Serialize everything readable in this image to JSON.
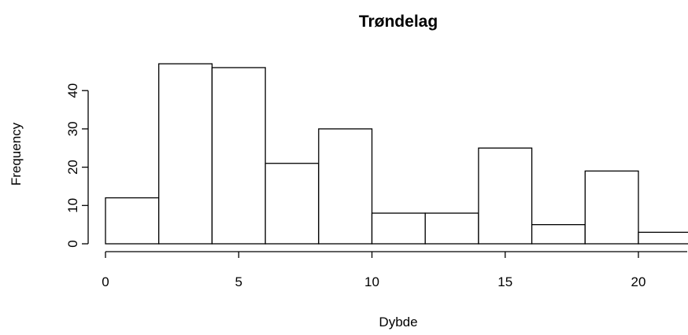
{
  "chart_data": {
    "type": "bar",
    "title": "Trøndelag",
    "xlabel": "Dybde",
    "ylabel": "Frequency",
    "bins": [
      {
        "start": 0,
        "end": 2,
        "count": 12
      },
      {
        "start": 2,
        "end": 4,
        "count": 47
      },
      {
        "start": 4,
        "end": 6,
        "count": 46
      },
      {
        "start": 6,
        "end": 8,
        "count": 21
      },
      {
        "start": 8,
        "end": 10,
        "count": 30
      },
      {
        "start": 10,
        "end": 12,
        "count": 8
      },
      {
        "start": 12,
        "end": 14,
        "count": 8
      },
      {
        "start": 14,
        "end": 16,
        "count": 25
      },
      {
        "start": 16,
        "end": 18,
        "count": 5
      },
      {
        "start": 18,
        "end": 20,
        "count": 19
      },
      {
        "start": 20,
        "end": 22,
        "count": 3
      }
    ],
    "x_ticks": [
      "0",
      "5",
      "10",
      "15",
      "20"
    ],
    "y_ticks": [
      "0",
      "10",
      "20",
      "30",
      "40"
    ],
    "xlim": [
      0,
      22
    ],
    "ylim": [
      0,
      47
    ],
    "grid": false
  }
}
